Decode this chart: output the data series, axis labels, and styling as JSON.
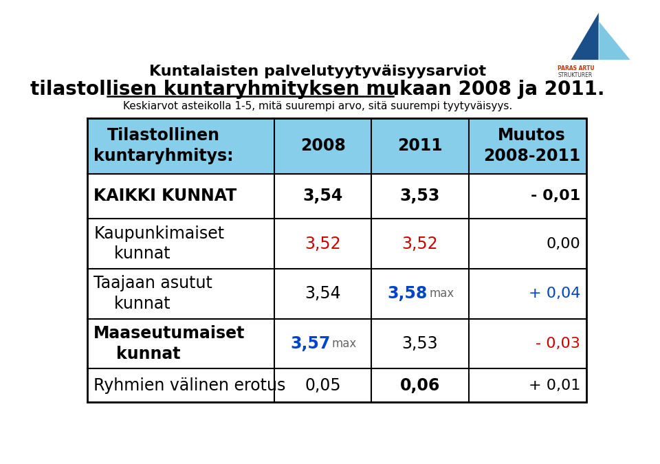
{
  "title_line1": "Kuntalaisten palvelutyytyväisyysarviot",
  "title_line2": "tilastollisen kuntaryhmityksen mukaan 2008 ja 2011.",
  "subtitle": "Keskiarvot asteikolla 1-5, mitä suurempi arvo, sitä suurempi tyytyväisyys.",
  "header_bg": "#87CEEB",
  "header_col1": "Tilastollinen\nkuntaryhmitys:",
  "header_col2": "2008",
  "header_col3": "2011",
  "header_col4": "Muutos\n2008-2011",
  "rows": [
    {
      "col1": "KAIKKI KUNNAT",
      "col2": "3,54",
      "col3": "3,53",
      "col4": "- 0,01",
      "col1_bold": true,
      "col2_color": "#000000",
      "col3_color": "#000000",
      "col4_color": "#000000",
      "col2_bold": true,
      "col3_bold": true,
      "col4_bold": true,
      "col2_suffix": "",
      "col3_suffix": "",
      "col1_multiline": false
    },
    {
      "col1": "Kaupunkimaiset\n    kunnat",
      "col2": "3,52",
      "col3": "3,52",
      "col4": "0,00",
      "col1_bold": false,
      "col2_color": "#cc0000",
      "col3_color": "#cc0000",
      "col4_color": "#000000",
      "col2_bold": false,
      "col3_bold": false,
      "col4_bold": false,
      "col2_suffix": "",
      "col3_suffix": "",
      "col1_multiline": true
    },
    {
      "col1": "Taajaan asutut\n    kunnat",
      "col2": "3,54",
      "col3": "3,58",
      "col4": "+ 0,04",
      "col1_bold": false,
      "col2_color": "#000000",
      "col3_color": "#0044cc",
      "col4_color": "#0044cc",
      "col2_bold": false,
      "col3_bold": true,
      "col4_bold": false,
      "col2_suffix": "",
      "col3_suffix": "max",
      "col1_multiline": true
    },
    {
      "col1": "Maaseutumaiset\n    kunnat",
      "col2": "3,57",
      "col3": "3,53",
      "col4": "- 0,03",
      "col1_bold": true,
      "col2_color": "#0044cc",
      "col3_color": "#000000",
      "col4_color": "#cc0000",
      "col2_bold": true,
      "col3_bold": false,
      "col4_bold": false,
      "col2_suffix": "max",
      "col3_suffix": "",
      "col1_multiline": true
    },
    {
      "col1": "Ryhmien välinen erotus",
      "col2": "0,05",
      "col3": "0,06",
      "col4": "+ 0,01",
      "col1_bold": false,
      "col2_color": "#000000",
      "col3_color": "#000000",
      "col4_color": "#000000",
      "col2_bold": false,
      "col3_bold": true,
      "col4_bold": false,
      "col2_suffix": "",
      "col3_suffix": "",
      "col1_multiline": false
    }
  ],
  "bg_color": "#ffffff",
  "border_color": "#000000",
  "title_fontsize": 16,
  "subtitle_fontsize": 11,
  "header_fontsize": 17,
  "cell_fontsize": 17,
  "suffix_fontsize": 12
}
